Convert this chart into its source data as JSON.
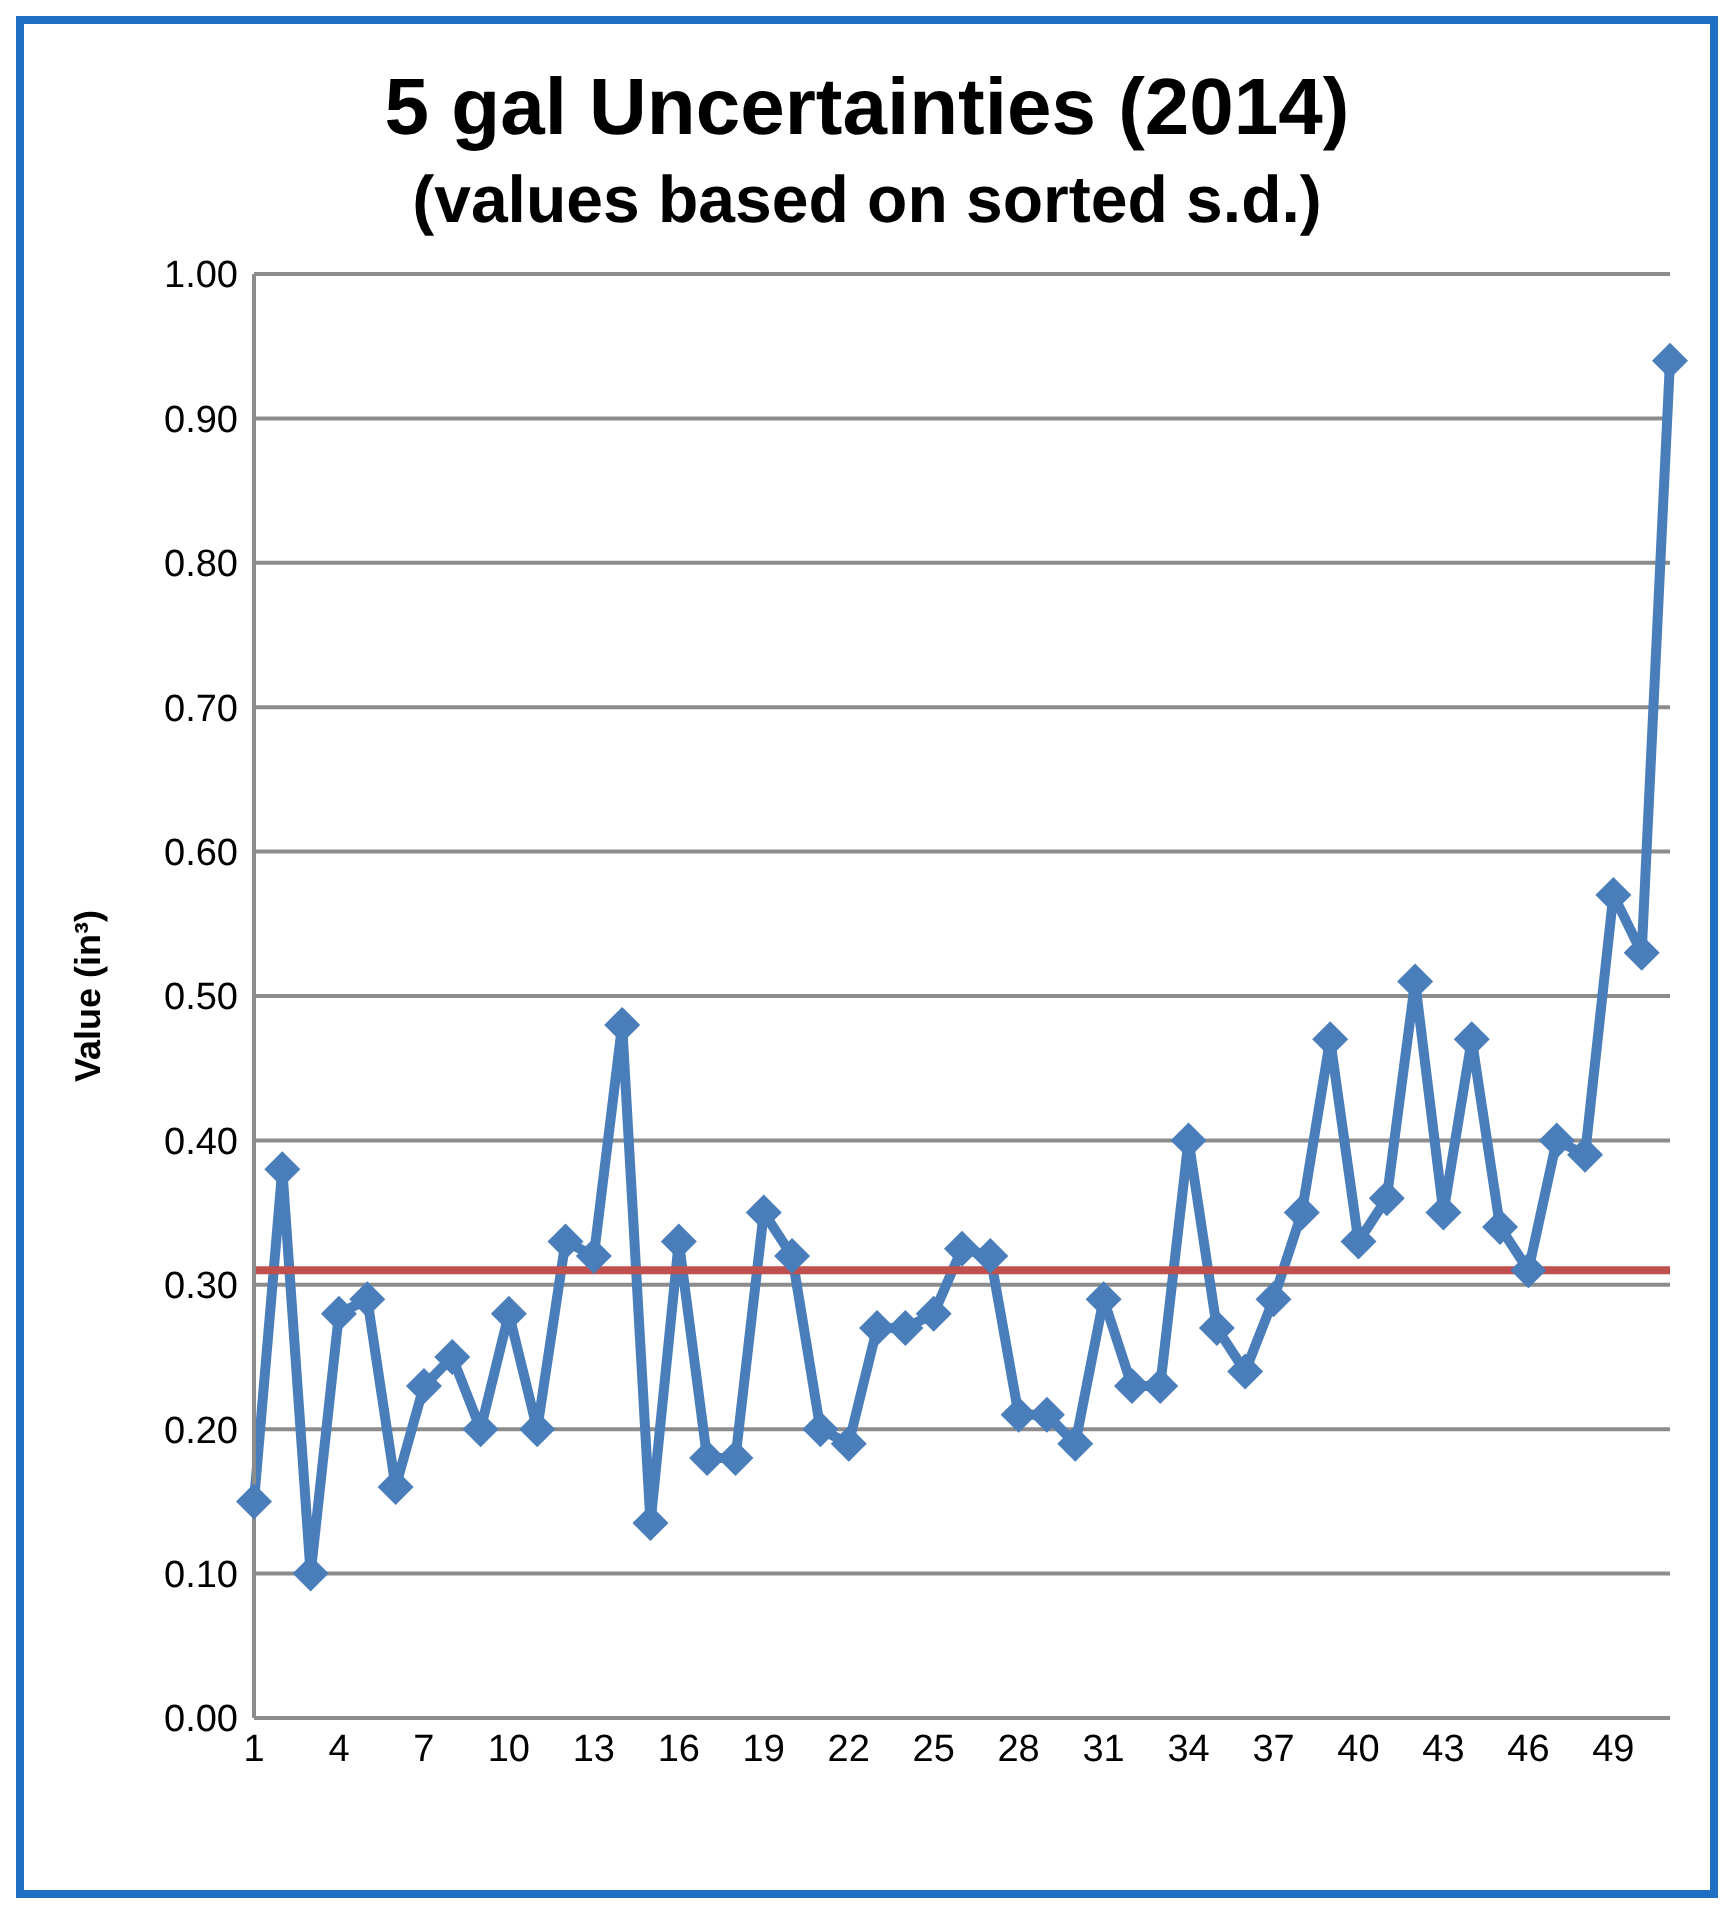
{
  "chart_data": {
    "type": "line",
    "title": "5 gal Uncertainties (2014)",
    "subtitle": "(values based on sorted s.d.)",
    "ylabel": "Value (in³)",
    "categories": [
      "1",
      null,
      null,
      "4",
      null,
      null,
      "7",
      null,
      null,
      "10",
      null,
      null,
      "13",
      null,
      null,
      "16",
      null,
      null,
      "19",
      null,
      null,
      "22",
      null,
      null,
      "25",
      null,
      null,
      "28",
      null,
      null,
      "31",
      null,
      null,
      "34",
      null,
      null,
      "37",
      null,
      null,
      "40",
      null,
      null,
      "43",
      null,
      null,
      "46",
      null,
      null,
      "49",
      null,
      null
    ],
    "series": [
      {
        "color": "#4a7ebb",
        "values": [
          0.15,
          0.38,
          0.1,
          0.28,
          0.29,
          0.16,
          0.23,
          0.25,
          0.2,
          0.28,
          0.2,
          0.33,
          0.32,
          0.48,
          0.135,
          0.33,
          0.18,
          0.18,
          0.35,
          0.32,
          0.2,
          0.19,
          0.27,
          0.27,
          0.28,
          0.325,
          0.32,
          0.21,
          0.21,
          0.19,
          0.29,
          0.23,
          0.23,
          0.4,
          0.27,
          0.24,
          0.29,
          0.35,
          0.47,
          0.33,
          0.36,
          0.51,
          0.35,
          0.47,
          0.34,
          0.31,
          0.4,
          0.39,
          0.57,
          0.53,
          0.94
        ]
      }
    ],
    "ylim": [
      0,
      1
    ],
    "yticks": [
      {
        "value": 0,
        "label": "0.00"
      },
      {
        "value": 0.1,
        "label": "0.10"
      },
      {
        "value": 0.2,
        "label": "0.20"
      },
      {
        "value": 0.3,
        "label": "0.30"
      },
      {
        "value": 0.4,
        "label": "0.40"
      },
      {
        "value": 0.5,
        "label": "0.50"
      },
      {
        "value": 0.6,
        "label": "0.60"
      },
      {
        "value": 0.7,
        "label": "0.70"
      },
      {
        "value": 0.8,
        "label": "0.80"
      },
      {
        "value": 0.9,
        "label": "0.90"
      },
      {
        "value": 1,
        "label": "1.00"
      }
    ],
    "grid": "y",
    "marker": "diamond",
    "line_style": "solid",
    "ref_lines": [
      {
        "axis": "y",
        "value": 0.31,
        "color": "#c0504d"
      }
    ]
  }
}
